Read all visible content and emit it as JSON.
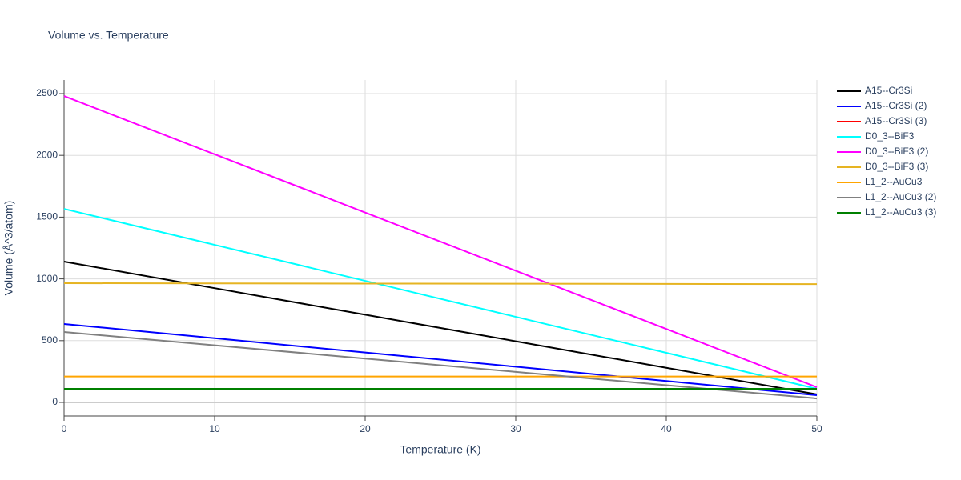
{
  "chart_data": {
    "type": "line",
    "title": "Volume vs. Temperature",
    "x_label": "Temperature (K)",
    "y_label": "Volume (Å^3/atom)",
    "x": [
      0,
      10,
      20,
      30,
      40,
      50
    ],
    "xlim": [
      0,
      50
    ],
    "ylim": [
      -110,
      2610
    ],
    "xticks": [
      0,
      10,
      20,
      30,
      40,
      50
    ],
    "yticks": [
      0,
      500,
      1000,
      1500,
      2000,
      2500
    ],
    "grid": true,
    "legend": "right",
    "series": [
      {
        "name": "A15--Cr3Si",
        "color": "#000000",
        "values": [
          1140,
          925,
          710,
          495,
          280,
          65
        ]
      },
      {
        "name": "A15--Cr3Si (2)",
        "color": "#0000ff",
        "values": [
          635,
          519.6,
          404.2,
          288.8,
          173.4,
          58
        ]
      },
      {
        "name": "A15--Cr3Si (3)",
        "color": "#ff0000",
        "values": [
          110,
          110,
          110,
          110,
          110,
          110
        ]
      },
      {
        "name": "D0_3--BiF3",
        "color": "#00ffff",
        "values": [
          1567,
          1275.6,
          984.2,
          692.8,
          401.4,
          110
        ]
      },
      {
        "name": "D0_3--BiF3 (2)",
        "color": "#ff00ff",
        "values": [
          2480,
          2008.6,
          1537.2,
          1065.8,
          594.4,
          123
        ]
      },
      {
        "name": "D0_3--BiF3 (3)",
        "color": "#e6b422",
        "values": [
          965,
          963.6,
          962.2,
          960.8,
          959.4,
          958
        ]
      },
      {
        "name": "L1_2--AuCu3",
        "color": "#ffa500",
        "values": [
          210,
          210,
          210,
          210,
          210,
          210
        ]
      },
      {
        "name": "L1_2--AuCu3 (2)",
        "color": "#808080",
        "values": [
          570,
          462.4,
          354.8,
          247.2,
          139.6,
          32
        ]
      },
      {
        "name": "L1_2--AuCu3 (3)",
        "color": "#008000",
        "values": [
          110,
          110,
          110,
          110,
          110,
          110
        ]
      }
    ]
  }
}
